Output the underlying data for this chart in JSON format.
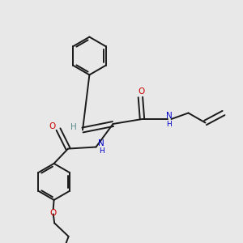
{
  "bg_color": "#e8e8e8",
  "bond_color": "#1a1a1a",
  "oxygen_color": "#cc0000",
  "nitrogen_color": "#0000cc",
  "line_width": 1.4,
  "dbo": 0.008,
  "figsize": [
    3.0,
    3.0
  ],
  "dpi": 100,
  "xlim": [
    0,
    1
  ],
  "ylim": [
    0,
    1
  ]
}
